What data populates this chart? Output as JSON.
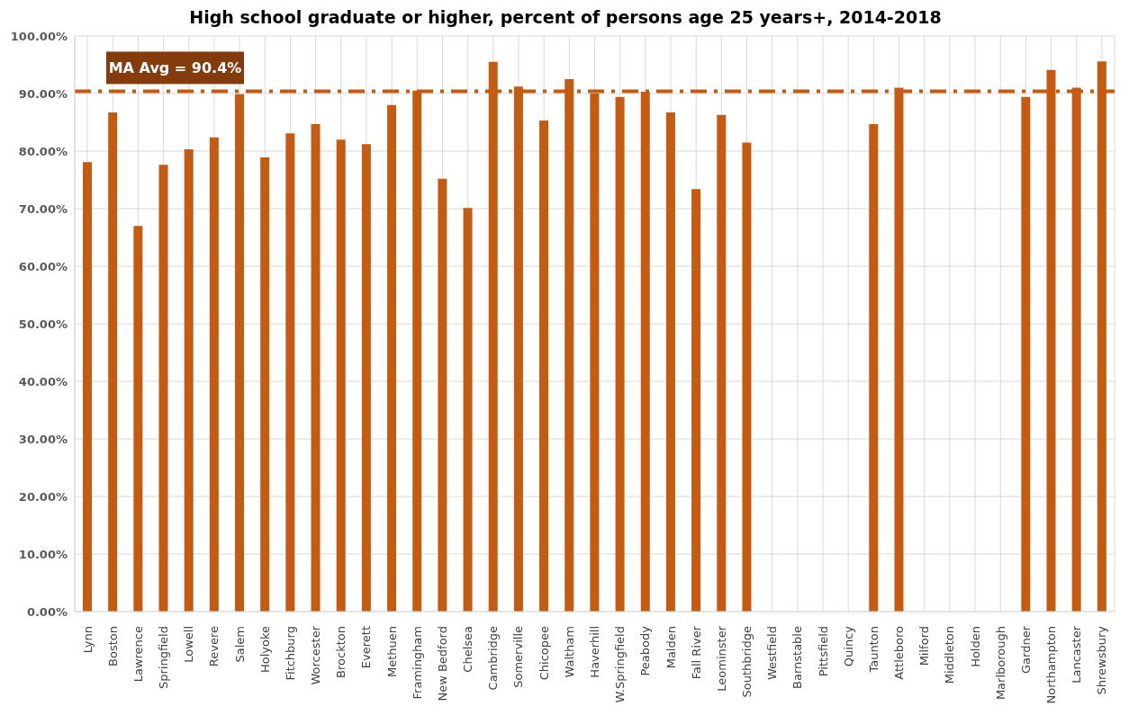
{
  "chart_data": {
    "type": "bar",
    "title": "High school graduate or higher, percent of persons age 25 years+, 2014-2018",
    "categories": [
      "Lynn",
      "Boston",
      "Lawrence",
      "Springfield",
      "Lowell",
      "Revere",
      "Salem",
      "Holyoke",
      "Fitchburg",
      "Worcester",
      "Brockton",
      "Everett",
      "Methuen",
      "Framingham",
      "New Bedford",
      "Chelsea",
      "Cambridge",
      "Somerville",
      "Chicopee",
      "Waltham",
      "Haverhill",
      "W.Springfield",
      "Peabody",
      "Malden",
      "Fall River",
      "Leominster",
      "Southbridge",
      "Westfield",
      "Barnstable",
      "Pittsfield",
      "Quincy",
      "Taunton",
      "Attleboro",
      "Milford",
      "Middleton",
      "Holden",
      "Marlborough",
      "Gardner",
      "Northampton",
      "Lancaster",
      "Shrewsbury"
    ],
    "series": [
      {
        "color": "#c55a11",
        "values": [
          78.1,
          86.7,
          67.0,
          77.6,
          80.3,
          82.4,
          89.9,
          78.9,
          83.1,
          84.7,
          82.0,
          81.2,
          88.0,
          90.5,
          75.2,
          70.1,
          95.5,
          91.2,
          85.3,
          92.5,
          90.0,
          89.4,
          90.3,
          86.7,
          73.4,
          86.3,
          81.5,
          null,
          null,
          null,
          null,
          84.7,
          91.0,
          null,
          null,
          null,
          null,
          89.4,
          94.1,
          91.0,
          95.6
        ]
      }
    ],
    "ylim": [
      0,
      100
    ],
    "yticks": [
      {
        "value": 0,
        "label": "0.00%"
      },
      {
        "value": 10,
        "label": "10.00%"
      },
      {
        "value": 20,
        "label": "20.00%"
      },
      {
        "value": 30,
        "label": "30.00%"
      },
      {
        "value": 40,
        "label": "40.00%"
      },
      {
        "value": 50,
        "label": "50.00%"
      },
      {
        "value": 60,
        "label": "60.00%"
      },
      {
        "value": 70,
        "label": "70.00%"
      },
      {
        "value": 80,
        "label": "80.00%"
      },
      {
        "value": 90,
        "label": "90.00%"
      },
      {
        "value": 100,
        "label": "100.00%"
      }
    ],
    "grid": true,
    "ref_lines": [
      {
        "axis": "y",
        "value": 90.4,
        "label": "MA Avg = 90.4%",
        "color": "#c55a11",
        "line_style": "dashed"
      }
    ]
  }
}
